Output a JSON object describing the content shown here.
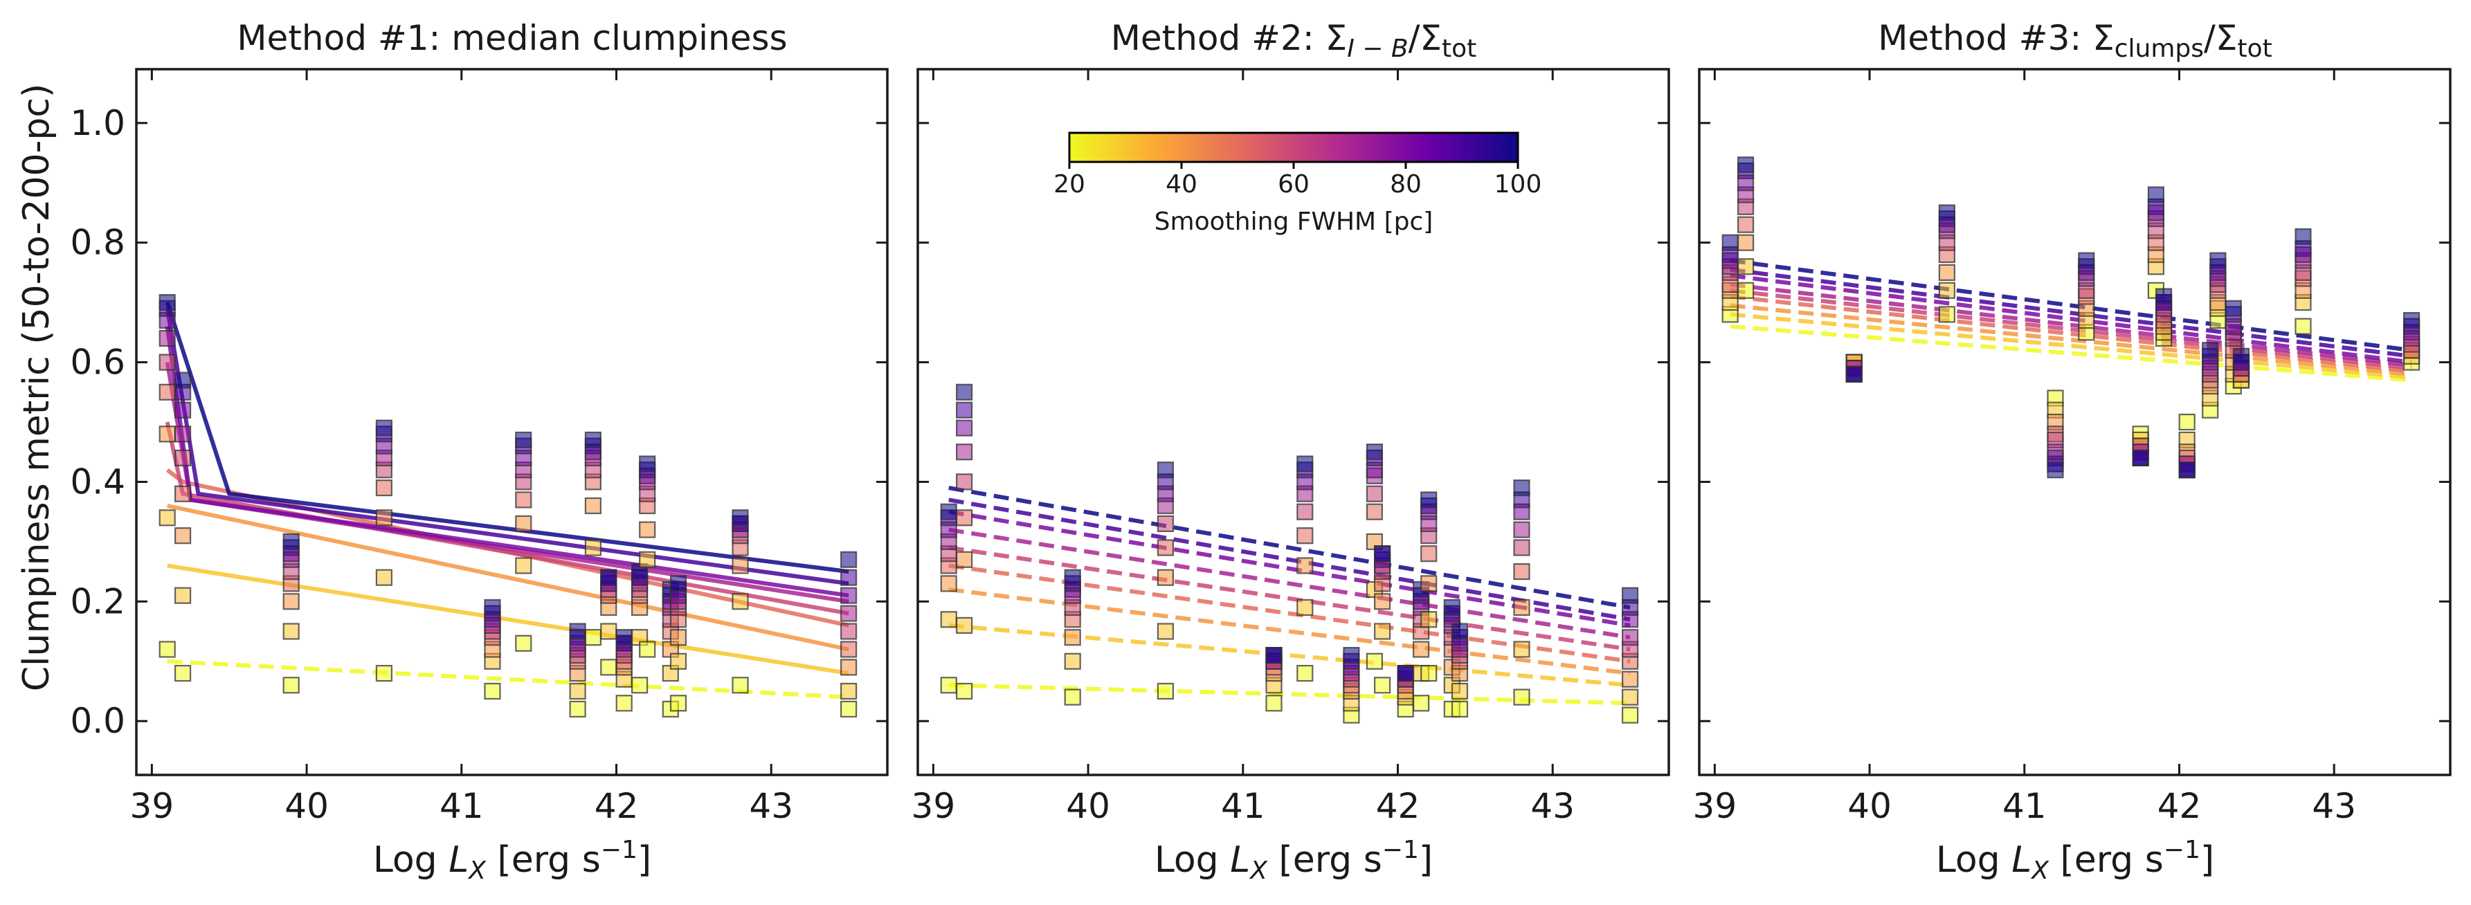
{
  "figure": {
    "ylabel": "Clumpiness metric (50-to-200-pc)",
    "xlabel_prefix": "Log ",
    "xlabel_var": "L",
    "xlabel_sub": "X",
    "xlabel_units": " [erg s",
    "xlabel_exp": "−1",
    "xlabel_close": "]",
    "colorbar_label": "Smoothing FWHM [pc]",
    "colorbar_ticks": [
      "20",
      "40",
      "60",
      "80",
      "100"
    ],
    "colorbar_range": [
      20,
      100
    ],
    "colormap_stops": [
      "#f0f921",
      "#fca636",
      "#e16462",
      "#b12a90",
      "#6a00a8",
      "#0d0887"
    ],
    "marker_alpha": 0.55
  },
  "chart_data": [
    {
      "type": "scatter",
      "title": "Method #1: median clumpiness",
      "xlabel": "Log L_X [erg s^-1]",
      "ylabel": "Clumpiness metric (50-to-200-pc)",
      "xlim": [
        38.9,
        43.75
      ],
      "ylim": [
        -0.09,
        1.09
      ],
      "xticks": [
        "39",
        "40",
        "41",
        "42",
        "43"
      ],
      "yticks": [
        "0.0",
        "0.2",
        "0.4",
        "0.6",
        "0.8",
        "1.0"
      ],
      "fwhm": [
        20,
        30,
        40,
        50,
        60,
        70,
        80,
        90,
        100
      ],
      "galaxies": [
        {
          "x": 39.1,
          "v": [
            0.12,
            0.34,
            0.48,
            0.55,
            0.6,
            0.64,
            0.67,
            0.69,
            0.7
          ]
        },
        {
          "x": 39.2,
          "v": [
            0.08,
            0.21,
            0.31,
            0.38,
            0.44,
            0.48,
            0.52,
            0.55,
            0.57
          ]
        },
        {
          "x": 39.9,
          "v": [
            0.06,
            0.15,
            0.2,
            0.23,
            0.25,
            0.27,
            0.28,
            0.29,
            0.3
          ]
        },
        {
          "x": 40.5,
          "v": [
            0.08,
            0.24,
            0.34,
            0.39,
            0.42,
            0.44,
            0.46,
            0.48,
            0.49
          ]
        },
        {
          "x": 41.2,
          "v": [
            0.05,
            0.1,
            0.12,
            0.14,
            0.15,
            0.16,
            0.17,
            0.18,
            0.19
          ]
        },
        {
          "x": 41.4,
          "v": [
            0.13,
            0.26,
            0.33,
            0.37,
            0.4,
            0.42,
            0.44,
            0.46,
            0.47
          ]
        },
        {
          "x": 41.75,
          "v": [
            0.02,
            0.05,
            0.08,
            0.1,
            0.11,
            0.12,
            0.13,
            0.14,
            0.15
          ]
        },
        {
          "x": 41.85,
          "v": [
            0.14,
            0.29,
            0.36,
            0.4,
            0.42,
            0.44,
            0.45,
            0.46,
            0.47
          ]
        },
        {
          "x": 41.95,
          "v": [
            0.09,
            0.15,
            0.19,
            0.21,
            0.22,
            0.23,
            0.23,
            0.24,
            0.24
          ]
        },
        {
          "x": 42.05,
          "v": [
            0.03,
            0.07,
            0.09,
            0.1,
            0.11,
            0.12,
            0.13,
            0.13,
            0.14
          ]
        },
        {
          "x": 42.15,
          "v": [
            0.06,
            0.14,
            0.19,
            0.21,
            0.22,
            0.23,
            0.24,
            0.24,
            0.25
          ]
        },
        {
          "x": 42.2,
          "v": [
            0.12,
            0.27,
            0.32,
            0.36,
            0.38,
            0.4,
            0.41,
            0.42,
            0.43
          ]
        },
        {
          "x": 42.35,
          "v": [
            0.02,
            0.08,
            0.12,
            0.15,
            0.17,
            0.19,
            0.2,
            0.21,
            0.22
          ]
        },
        {
          "x": 42.4,
          "v": [
            0.03,
            0.1,
            0.14,
            0.17,
            0.19,
            0.2,
            0.21,
            0.22,
            0.23
          ]
        },
        {
          "x": 42.8,
          "v": [
            0.06,
            0.2,
            0.26,
            0.29,
            0.31,
            0.32,
            0.33,
            0.33,
            0.34
          ]
        },
        {
          "x": 43.5,
          "v": [
            0.02,
            0.05,
            0.09,
            0.12,
            0.15,
            0.18,
            0.21,
            0.24,
            0.27
          ]
        }
      ],
      "fit_lines": [
        {
          "fwhm": 20,
          "style": "dashed",
          "x": [
            39.1,
            43.5
          ],
          "y": [
            0.1,
            0.04
          ]
        },
        {
          "fwhm": 30,
          "style": "solid",
          "x": [
            39.1,
            43.5
          ],
          "y": [
            0.26,
            0.08
          ]
        },
        {
          "fwhm": 40,
          "style": "solid",
          "x": [
            39.1,
            43.5
          ],
          "y": [
            0.36,
            0.12
          ]
        },
        {
          "fwhm": 50,
          "style": "solid",
          "x": [
            39.1,
            39.2,
            43.5
          ],
          "y": [
            0.42,
            0.4,
            0.16
          ]
        },
        {
          "fwhm": 60,
          "style": "solid",
          "x": [
            39.1,
            39.2,
            43.5
          ],
          "y": [
            0.5,
            0.38,
            0.18
          ]
        },
        {
          "fwhm": 70,
          "style": "solid",
          "x": [
            39.1,
            39.25,
            43.5
          ],
          "y": [
            0.6,
            0.37,
            0.2
          ]
        },
        {
          "fwhm": 80,
          "style": "solid",
          "x": [
            39.1,
            39.25,
            43.5
          ],
          "y": [
            0.66,
            0.37,
            0.21
          ]
        },
        {
          "fwhm": 90,
          "style": "solid",
          "x": [
            39.1,
            39.3,
            43.5
          ],
          "y": [
            0.69,
            0.38,
            0.23
          ]
        },
        {
          "fwhm": 100,
          "style": "solid",
          "x": [
            39.1,
            39.5,
            43.5
          ],
          "y": [
            0.7,
            0.38,
            0.25
          ]
        }
      ]
    },
    {
      "type": "scatter",
      "title": "Method #2: Σ",
      "title_sub": "I − B",
      "title_mid": "/Σ",
      "title_sub2": "tot",
      "xlabel": "Log L_X [erg s^-1]",
      "ylabel": "Clumpiness metric (50-to-200-pc)",
      "xlim": [
        38.9,
        43.75
      ],
      "ylim": [
        -0.09,
        1.09
      ],
      "xticks": [
        "39",
        "40",
        "41",
        "42",
        "43"
      ],
      "yticks": [
        "0.0",
        "0.2",
        "0.4",
        "0.6",
        "0.8",
        "1.0"
      ],
      "fwhm": [
        20,
        30,
        40,
        50,
        60,
        70,
        80,
        90,
        100
      ],
      "galaxies": [
        {
          "x": 39.1,
          "v": [
            0.06,
            0.17,
            0.23,
            0.26,
            0.28,
            0.3,
            0.32,
            0.34,
            0.35
          ]
        },
        {
          "x": 39.2,
          "v": [
            0.05,
            0.16,
            0.27,
            0.34,
            0.4,
            0.45,
            0.49,
            0.52,
            0.55
          ]
        },
        {
          "x": 39.9,
          "v": [
            0.04,
            0.1,
            0.14,
            0.17,
            0.19,
            0.21,
            0.22,
            0.23,
            0.24
          ]
        },
        {
          "x": 40.5,
          "v": [
            0.05,
            0.15,
            0.24,
            0.29,
            0.33,
            0.36,
            0.38,
            0.4,
            0.42
          ]
        },
        {
          "x": 41.2,
          "v": [
            0.03,
            0.06,
            0.08,
            0.09,
            0.1,
            0.1,
            0.11,
            0.11,
            0.11
          ]
        },
        {
          "x": 41.4,
          "v": [
            0.08,
            0.19,
            0.26,
            0.31,
            0.35,
            0.38,
            0.4,
            0.42,
            0.43
          ]
        },
        {
          "x": 41.7,
          "v": [
            0.01,
            0.03,
            0.05,
            0.06,
            0.07,
            0.08,
            0.09,
            0.1,
            0.11
          ]
        },
        {
          "x": 41.85,
          "v": [
            0.1,
            0.22,
            0.3,
            0.35,
            0.38,
            0.41,
            0.42,
            0.44,
            0.45
          ]
        },
        {
          "x": 41.9,
          "v": [
            0.06,
            0.15,
            0.2,
            0.23,
            0.25,
            0.26,
            0.27,
            0.28,
            0.28
          ]
        },
        {
          "x": 42.05,
          "v": [
            0.02,
            0.04,
            0.05,
            0.06,
            0.07,
            0.07,
            0.08,
            0.08,
            0.08
          ]
        },
        {
          "x": 42.15,
          "v": [
            0.03,
            0.08,
            0.12,
            0.15,
            0.17,
            0.19,
            0.2,
            0.21,
            0.22
          ]
        },
        {
          "x": 42.2,
          "v": [
            0.08,
            0.17,
            0.23,
            0.28,
            0.31,
            0.33,
            0.35,
            0.36,
            0.37
          ]
        },
        {
          "x": 42.35,
          "v": [
            0.02,
            0.06,
            0.09,
            0.12,
            0.14,
            0.16,
            0.17,
            0.18,
            0.19
          ]
        },
        {
          "x": 42.4,
          "v": [
            0.02,
            0.05,
            0.08,
            0.1,
            0.11,
            0.12,
            0.13,
            0.14,
            0.15
          ]
        },
        {
          "x": 42.8,
          "v": [
            0.04,
            0.12,
            0.19,
            0.25,
            0.29,
            0.32,
            0.35,
            0.37,
            0.39
          ]
        },
        {
          "x": 43.5,
          "v": [
            0.01,
            0.04,
            0.07,
            0.1,
            0.12,
            0.14,
            0.17,
            0.19,
            0.21
          ]
        }
      ],
      "fit_lines": [
        {
          "fwhm": 20,
          "style": "dashed",
          "x": [
            39.1,
            43.5
          ],
          "y": [
            0.06,
            0.03
          ]
        },
        {
          "fwhm": 30,
          "style": "dashed",
          "x": [
            39.1,
            43.5
          ],
          "y": [
            0.16,
            0.06
          ]
        },
        {
          "fwhm": 40,
          "style": "dashed",
          "x": [
            39.1,
            43.5
          ],
          "y": [
            0.22,
            0.08
          ]
        },
        {
          "fwhm": 50,
          "style": "dashed",
          "x": [
            39.1,
            43.5
          ],
          "y": [
            0.26,
            0.1
          ]
        },
        {
          "fwhm": 60,
          "style": "dashed",
          "x": [
            39.1,
            43.5
          ],
          "y": [
            0.29,
            0.12
          ]
        },
        {
          "fwhm": 70,
          "style": "dashed",
          "x": [
            39.1,
            43.5
          ],
          "y": [
            0.32,
            0.14
          ]
        },
        {
          "fwhm": 80,
          "style": "dashed",
          "x": [
            39.1,
            43.5
          ],
          "y": [
            0.35,
            0.16
          ]
        },
        {
          "fwhm": 90,
          "style": "dashed",
          "x": [
            39.1,
            43.5
          ],
          "y": [
            0.37,
            0.17
          ]
        },
        {
          "fwhm": 100,
          "style": "dashed",
          "x": [
            39.1,
            43.5
          ],
          "y": [
            0.39,
            0.19
          ]
        }
      ]
    },
    {
      "type": "scatter",
      "title": "Method #3: Σ",
      "title_sub": "clumps",
      "title_mid": "/Σ",
      "title_sub2": "tot",
      "xlabel": "Log L_X [erg s^-1]",
      "ylabel": "Clumpiness metric (50-to-200-pc)",
      "xlim": [
        38.9,
        43.75
      ],
      "ylim": [
        -0.09,
        1.09
      ],
      "xticks": [
        "39",
        "40",
        "41",
        "42",
        "43"
      ],
      "yticks": [
        "0.0",
        "0.2",
        "0.4",
        "0.6",
        "0.8",
        "1.0"
      ],
      "fwhm": [
        20,
        30,
        40,
        50,
        60,
        70,
        80,
        90,
        100
      ],
      "galaxies": [
        {
          "x": 39.1,
          "v": [
            0.68,
            0.7,
            0.72,
            0.73,
            0.75,
            0.76,
            0.77,
            0.78,
            0.8
          ]
        },
        {
          "x": 39.2,
          "v": [
            0.72,
            0.76,
            0.8,
            0.83,
            0.86,
            0.88,
            0.9,
            0.92,
            0.93
          ]
        },
        {
          "x": 39.9,
          "v": [
            0.6,
            0.6,
            0.6,
            0.59,
            0.59,
            0.59,
            0.58,
            0.58,
            0.58
          ]
        },
        {
          "x": 40.5,
          "v": [
            0.68,
            0.72,
            0.75,
            0.78,
            0.8,
            0.82,
            0.83,
            0.84,
            0.85
          ]
        },
        {
          "x": 41.2,
          "v": [
            0.54,
            0.52,
            0.5,
            0.48,
            0.47,
            0.45,
            0.44,
            0.43,
            0.42
          ]
        },
        {
          "x": 41.4,
          "v": [
            0.65,
            0.67,
            0.69,
            0.71,
            0.72,
            0.74,
            0.75,
            0.76,
            0.77
          ]
        },
        {
          "x": 41.75,
          "v": [
            0.48,
            0.47,
            0.46,
            0.46,
            0.45,
            0.45,
            0.44,
            0.44,
            0.44
          ]
        },
        {
          "x": 41.85,
          "v": [
            0.72,
            0.76,
            0.78,
            0.8,
            0.82,
            0.84,
            0.85,
            0.86,
            0.88
          ]
        },
        {
          "x": 41.9,
          "v": [
            0.64,
            0.65,
            0.66,
            0.67,
            0.68,
            0.69,
            0.7,
            0.7,
            0.71
          ]
        },
        {
          "x": 42.05,
          "v": [
            0.5,
            0.47,
            0.45,
            0.44,
            0.43,
            0.43,
            0.42,
            0.42,
            0.42
          ]
        },
        {
          "x": 42.2,
          "v": [
            0.52,
            0.54,
            0.56,
            0.57,
            0.58,
            0.59,
            0.6,
            0.61,
            0.62
          ]
        },
        {
          "x": 42.25,
          "v": [
            0.67,
            0.69,
            0.7,
            0.72,
            0.73,
            0.74,
            0.75,
            0.76,
            0.77
          ]
        },
        {
          "x": 42.35,
          "v": [
            0.56,
            0.58,
            0.6,
            0.62,
            0.64,
            0.65,
            0.66,
            0.68,
            0.69
          ]
        },
        {
          "x": 42.4,
          "v": [
            0.57,
            0.57,
            0.58,
            0.58,
            0.59,
            0.59,
            0.6,
            0.6,
            0.61
          ]
        },
        {
          "x": 42.8,
          "v": [
            0.66,
            0.7,
            0.72,
            0.74,
            0.75,
            0.77,
            0.78,
            0.79,
            0.81
          ]
        },
        {
          "x": 43.5,
          "v": [
            0.6,
            0.61,
            0.62,
            0.62,
            0.63,
            0.64,
            0.65,
            0.66,
            0.67
          ]
        }
      ],
      "fit_lines": [
        {
          "fwhm": 20,
          "style": "dashed",
          "x": [
            39.1,
            43.5
          ],
          "y": [
            0.66,
            0.57
          ]
        },
        {
          "fwhm": 30,
          "style": "dashed",
          "x": [
            39.1,
            43.5
          ],
          "y": [
            0.68,
            0.575
          ]
        },
        {
          "fwhm": 40,
          "style": "dashed",
          "x": [
            39.1,
            43.5
          ],
          "y": [
            0.695,
            0.58
          ]
        },
        {
          "fwhm": 50,
          "style": "dashed",
          "x": [
            39.1,
            43.5
          ],
          "y": [
            0.71,
            0.585
          ]
        },
        {
          "fwhm": 60,
          "style": "dashed",
          "x": [
            39.1,
            43.5
          ],
          "y": [
            0.72,
            0.59
          ]
        },
        {
          "fwhm": 70,
          "style": "dashed",
          "x": [
            39.1,
            43.5
          ],
          "y": [
            0.73,
            0.595
          ]
        },
        {
          "fwhm": 80,
          "style": "dashed",
          "x": [
            39.1,
            43.5
          ],
          "y": [
            0.745,
            0.6
          ]
        },
        {
          "fwhm": 90,
          "style": "dashed",
          "x": [
            39.1,
            43.5
          ],
          "y": [
            0.755,
            0.61
          ]
        },
        {
          "fwhm": 100,
          "style": "dashed",
          "x": [
            39.1,
            43.5
          ],
          "y": [
            0.77,
            0.62
          ]
        }
      ]
    }
  ]
}
